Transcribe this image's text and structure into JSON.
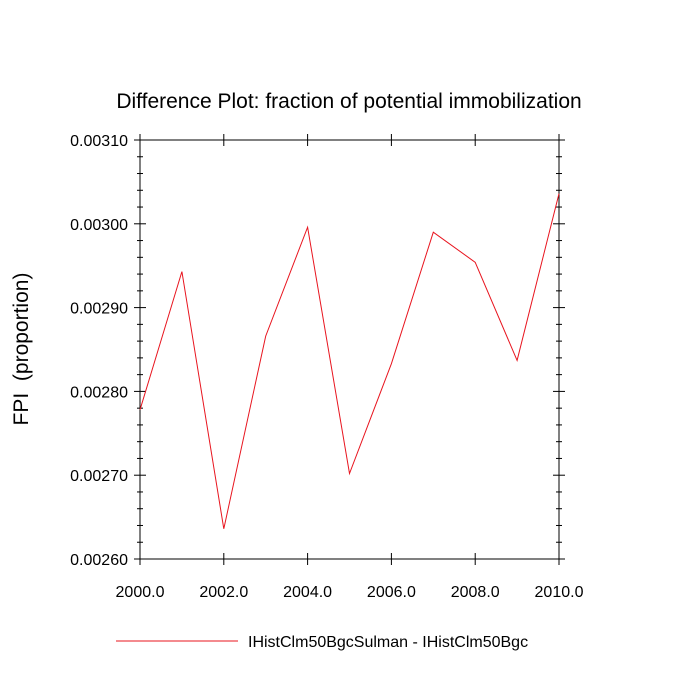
{
  "chart_data": {
    "type": "line",
    "title": "Difference Plot: fraction of potential immobilization",
    "xlabel": "",
    "ylabel": "FPI  (proportion)",
    "xlim": [
      2000.0,
      2010.0
    ],
    "ylim": [
      0.0026,
      0.0031
    ],
    "xticks": [
      2000,
      2002,
      2004,
      2006,
      2008,
      2010
    ],
    "xtick_labels": [
      "2000.0",
      "2002.0",
      "2004.0",
      "2006.0",
      "2008.0",
      "2010.0"
    ],
    "yticks": [
      0.0026,
      0.0027,
      0.0028,
      0.0029,
      0.003,
      0.0031
    ],
    "ytick_labels": [
      "0.00260",
      "0.00270",
      "0.00280",
      "0.00290",
      "0.00300",
      "0.00310"
    ],
    "grid": false,
    "legend_position": "bottom",
    "x": [
      2000,
      2001,
      2002,
      2003,
      2004,
      2005,
      2006,
      2007,
      2008,
      2009,
      2010
    ],
    "series": [
      {
        "name": "IHistClm50BgcSulman - IHistClm50Bgc",
        "color": "#e8141e",
        "values": [
          0.002778,
          0.002943,
          0.002636,
          0.002866,
          0.002996,
          0.002702,
          0.002833,
          0.00299,
          0.002954,
          0.002837,
          0.003036
        ]
      }
    ]
  }
}
